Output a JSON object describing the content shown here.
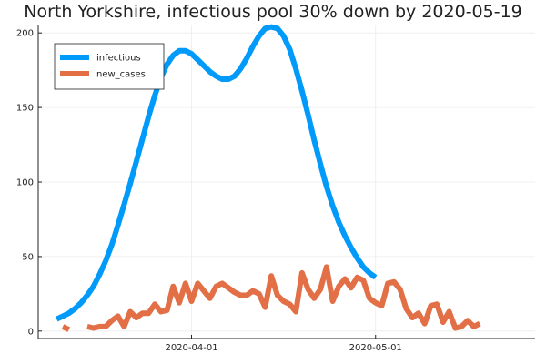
{
  "chart_data": {
    "type": "line",
    "title": "North Yorkshire, infectious pool 30% down by 2020-05-19",
    "xlabel": "",
    "ylabel": "",
    "x_start": "2020-03-10",
    "x_ticks": [
      {
        "label": "2020-04-01",
        "date": "2020-04-01"
      },
      {
        "label": "2020-05-01",
        "date": "2020-05-01"
      }
    ],
    "xlim": [
      "2020-03-07",
      "2020-05-27"
    ],
    "ylim": [
      -5,
      205
    ],
    "y_ticks": [
      0,
      50,
      100,
      150,
      200
    ],
    "grid": true,
    "legend_position": "top-left",
    "series": [
      {
        "name": "infectious",
        "color": "#009AFA",
        "start_date": "2020-03-10",
        "values": [
          8,
          10,
          12,
          15,
          19,
          24,
          30,
          38,
          47,
          58,
          71,
          85,
          99,
          114,
          129,
          144,
          158,
          170,
          179,
          185,
          188,
          188,
          186,
          182,
          178,
          174,
          171,
          169,
          169,
          171,
          176,
          183,
          191,
          198,
          203,
          204,
          203,
          198,
          189,
          176,
          161,
          145,
          128,
          112,
          97,
          84,
          73,
          64,
          56,
          49,
          43,
          39,
          36
        ]
      },
      {
        "name": "new_cases",
        "color": "#E26F46",
        "start_date": "2020-03-11",
        "values": [
          3,
          1,
          null,
          null,
          3,
          2,
          3,
          3,
          7,
          10,
          3,
          13,
          9,
          12,
          12,
          18,
          13,
          14,
          30,
          19,
          32,
          20,
          32,
          27,
          22,
          30,
          32,
          29,
          26,
          24,
          24,
          27,
          25,
          16,
          37,
          24,
          20,
          18,
          13,
          39,
          28,
          22,
          28,
          43,
          20,
          30,
          35,
          29,
          36,
          34,
          22,
          19,
          17,
          32,
          33,
          28,
          15,
          9,
          12,
          5,
          17,
          18,
          6,
          13,
          2,
          3,
          7,
          3,
          5
        ]
      }
    ]
  }
}
